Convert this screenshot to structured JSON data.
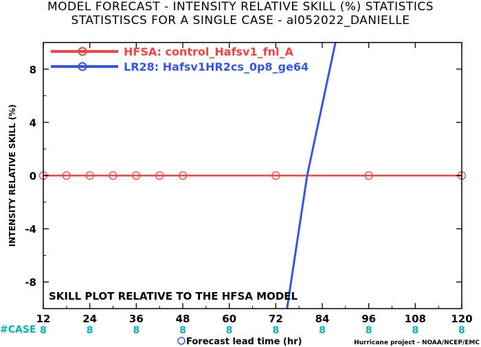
{
  "title": {
    "line1": "MODEL FORECAST - INTENSITY RELATIVE SKILL (%) STATISTICS",
    "line2": "STATISTISCS FOR A SINGLE CASE - al052022_DANIELLE"
  },
  "chart_data": {
    "type": "line",
    "ylabel": "INTENSITY RELATIVE SKILL (%)",
    "xlabel": "Forecast lead time (hr)",
    "xlim": [
      12,
      120
    ],
    "ylim": [
      -10,
      10
    ],
    "xticks": [
      "12",
      "24",
      "36",
      "48",
      "60",
      "72",
      "84",
      "96",
      "108",
      "120"
    ],
    "yticks": [
      "8",
      "4",
      "0",
      "-4",
      "-8"
    ],
    "ytick_values": [
      8,
      4,
      0,
      -4,
      -8
    ],
    "series": [
      {
        "name": "HFSA: control_Hafsv1_fnl_A",
        "color": "#ff4040",
        "x": [
          12,
          18,
          24,
          30,
          36,
          42,
          48,
          72,
          96,
          120
        ],
        "y": [
          0,
          0,
          0,
          0,
          0,
          0,
          0,
          0,
          0,
          0
        ]
      },
      {
        "name": "LR28: Hafsv1HR2cs_0p8_ge64",
        "color": "#3355ee",
        "x": [
          74.9,
          80.1,
          87.4
        ],
        "y": [
          -10,
          0,
          10
        ]
      }
    ],
    "case_label": "#CASE",
    "case_x": [
      12,
      24,
      36,
      48,
      60,
      72,
      84,
      96,
      108,
      120
    ],
    "case_counts": [
      "8",
      "8",
      "8",
      "8",
      "8",
      "8",
      "8",
      "8",
      "8",
      "8"
    ],
    "annotation": "SKILL PLOT RELATIVE TO THE HFSA MODEL",
    "credit": "Hurricane project - NOAA/NCEP/EMC",
    "grid": false,
    "legend_position": "top-left"
  }
}
